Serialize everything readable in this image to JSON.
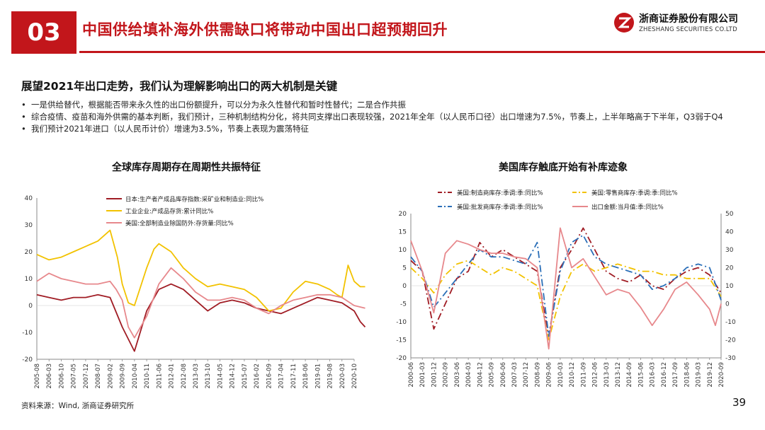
{
  "header": {
    "section_number": "03",
    "title": "中国供给填补海外供需缺口将带动中国出口超预期回升",
    "logo_cn": "浙商证券股份有限公司",
    "logo_en": "ZHESHANG SECURITIES CO.LTD"
  },
  "heading": "展望2021年出口走势，我们认为理解影响出口的两大机制是关键",
  "bullets": [
    "一是供给替代，根据能否带来永久性的出口份额提升，可以分为永久性替代和暂时性替代；二是合作共振",
    "综合疫情、疫苗和海外供需的基本判断，我们预计，三种机制结构分化，将共同支撑出口表现较强，2021年全年（以人民币口径）出口增速为7.5%，节奏上，上半年略高于下半年，Q3弱于Q4",
    "我们预计2021年进口（以人民币计价）增速为3.5%，节奏上表现为震荡特征"
  ],
  "source": "资料来源：Wind, 浙商证券研究所",
  "page_number": "39",
  "colors": {
    "brand_red": "#c2161b",
    "dark_red": "#a01c24",
    "yellow": "#f2c200",
    "pink": "#e7888c",
    "blue": "#2b6fb8"
  },
  "chart_data": [
    {
      "type": "line",
      "title": "全球库存周期存在周期性共振特征",
      "ylim": [
        -20,
        40
      ],
      "yticks": [
        "40",
        "30",
        "20",
        "10",
        "0",
        "-10",
        "-20"
      ],
      "x_labels": [
        "2005-08",
        "2006-03",
        "2006-10",
        "2007-05",
        "2007-12",
        "2008-07",
        "2009-02",
        "2009-09",
        "2010-04",
        "2010-11",
        "2011-06",
        "2012-01",
        "2012-08",
        "2013-03",
        "2013-10",
        "2014-05",
        "2014-12",
        "2015-07",
        "2016-02",
        "2016-09",
        "2017-04",
        "2017-11",
        "2018-06",
        "2019-01",
        "2019-08",
        "2020-03",
        "2020-10"
      ],
      "series": [
        {
          "name": "日本:生产者产成品库存指数:采矿业和制造业:同比%",
          "color": "#a01c24",
          "x": [
            0,
            1,
            2,
            3,
            4,
            5,
            6,
            7,
            8,
            9,
            10,
            11,
            12,
            13,
            14,
            15,
            16,
            17,
            18,
            19,
            20,
            21,
            22,
            23,
            24,
            25,
            26,
            26.5,
            26.9
          ],
          "values": [
            4,
            3,
            2,
            3,
            3,
            4,
            3,
            -8,
            -17,
            -2,
            6,
            8,
            6,
            2,
            -2,
            1,
            2,
            1,
            -1,
            -2,
            -3,
            -1,
            1,
            3,
            2,
            1,
            -2,
            -6,
            -8
          ]
        },
        {
          "name": "工业企业:产成品存货:累计同比%",
          "color": "#f2c200",
          "x": [
            0,
            1,
            2,
            3,
            4,
            5,
            6,
            6.6,
            7,
            7.5,
            8,
            9,
            9.6,
            10,
            11,
            12,
            13,
            14,
            15,
            16,
            17,
            18,
            19,
            20,
            21,
            22,
            23,
            24,
            24.6,
            25,
            25.5,
            26,
            26.5,
            26.9
          ],
          "values": [
            19,
            17,
            18,
            20,
            22,
            24,
            28,
            18,
            8,
            1,
            0,
            14,
            21,
            23,
            20,
            14,
            10,
            7,
            8,
            7,
            6,
            3,
            -2,
            -1,
            5,
            9,
            8,
            6,
            4,
            3,
            15,
            9,
            7,
            7
          ]
        },
        {
          "name": "美国:全部制造业除国防外:存货量:同比%",
          "color": "#e7888c",
          "x": [
            0,
            1,
            2,
            3,
            4,
            5,
            6,
            6.5,
            7,
            7.5,
            8,
            9,
            10,
            11,
            12,
            13,
            14,
            15,
            16,
            17,
            18,
            19,
            20,
            21,
            22,
            23,
            24,
            25,
            26,
            26.9
          ],
          "values": [
            9,
            12,
            10,
            9,
            8,
            8,
            9,
            6,
            2,
            -8,
            -12,
            -4,
            8,
            14,
            10,
            5,
            2,
            2,
            3,
            2,
            -1,
            -3,
            0,
            2,
            3,
            4,
            4,
            3,
            0,
            -1
          ]
        }
      ]
    },
    {
      "type": "line",
      "title": "美国库存触底开始有补库迹象",
      "ylim": [
        -20,
        20
      ],
      "y2lim": [
        -30,
        50
      ],
      "yticks": [
        "20",
        "15",
        "10",
        "5",
        "0",
        "-5",
        "-10",
        "-15",
        "-20"
      ],
      "y2ticks": [
        "50",
        "40",
        "30",
        "20",
        "10",
        "0",
        "-10",
        "-20",
        "-30"
      ],
      "x_labels": [
        "2000-06",
        "2001-03",
        "2001-12",
        "2002-09",
        "2003-06",
        "2004-03",
        "2004-12",
        "2005-09",
        "2006-06",
        "2007-03",
        "2007-12",
        "2008-09",
        "2009-06",
        "2010-03",
        "2010-12",
        "2011-09",
        "2012-06",
        "2013-03",
        "2013-12",
        "2014-09",
        "2015-06",
        "2016-03",
        "2016-12",
        "2017-09",
        "2018-06",
        "2019-03",
        "2019-12",
        "2020-09"
      ],
      "series": [
        {
          "name": "美国:制造商库存:季调:季:同比%",
          "color": "#a01c24",
          "dash": "10,4,2,4",
          "x": [
            0,
            1,
            2,
            3,
            4,
            5,
            6,
            7,
            8,
            9,
            10,
            11,
            12,
            13,
            14,
            15,
            16,
            17,
            18,
            19,
            20,
            21,
            22,
            23,
            24,
            25,
            26,
            27
          ],
          "values": [
            7,
            4,
            -12,
            -5,
            2,
            4,
            12,
            8,
            10,
            8,
            6,
            4,
            -14,
            5,
            10,
            16,
            10,
            4,
            2,
            1,
            3,
            0,
            -1,
            2,
            4,
            5,
            3,
            -2
          ]
        },
        {
          "name": "美国:零售商库存:季调:季:同比%",
          "color": "#f2c200",
          "dash": "10,4,2,4",
          "x": [
            0,
            1,
            2,
            3,
            4,
            5,
            6,
            7,
            8,
            9,
            10,
            11,
            12,
            13,
            14,
            15,
            16,
            17,
            18,
            19,
            20,
            21,
            22,
            23,
            24,
            25,
            26,
            27
          ],
          "values": [
            5,
            2,
            -2,
            3,
            6,
            7,
            5,
            3,
            5,
            4,
            2,
            0,
            -15,
            -3,
            4,
            6,
            4,
            5,
            6,
            5,
            4,
            4,
            3,
            3,
            2,
            2,
            2,
            -3
          ]
        },
        {
          "name": "美国:批发商库存:季调:季:同比%",
          "color": "#2b6fb8",
          "dash": "10,4,2,4",
          "x": [
            0,
            1,
            2,
            3,
            4,
            5,
            6,
            7,
            8,
            9,
            10,
            11,
            12,
            13,
            14,
            15,
            16,
            17,
            18,
            19,
            20,
            21,
            22,
            23,
            24,
            25,
            26,
            27
          ],
          "values": [
            8,
            4,
            -6,
            -2,
            2,
            6,
            10,
            8,
            8,
            7,
            6,
            12,
            -14,
            4,
            12,
            14,
            8,
            6,
            5,
            4,
            3,
            -1,
            0,
            2,
            5,
            6,
            5,
            -4
          ]
        },
        {
          "name": "出口金额:当月值:季:同比%",
          "color": "#e7888c",
          "axis": "right",
          "x": [
            0,
            1,
            2,
            3,
            4,
            5,
            6,
            7,
            8,
            9,
            10,
            11,
            12,
            13,
            14,
            15,
            16,
            17,
            18,
            19,
            20,
            21,
            22,
            23,
            24,
            25,
            26,
            26.5,
            27
          ],
          "values": [
            35,
            18,
            -5,
            28,
            35,
            33,
            30,
            28,
            28,
            26,
            25,
            20,
            -25,
            42,
            20,
            25,
            15,
            5,
            8,
            6,
            -2,
            -12,
            -3,
            8,
            12,
            5,
            -3,
            -12,
            0
          ]
        }
      ]
    }
  ]
}
